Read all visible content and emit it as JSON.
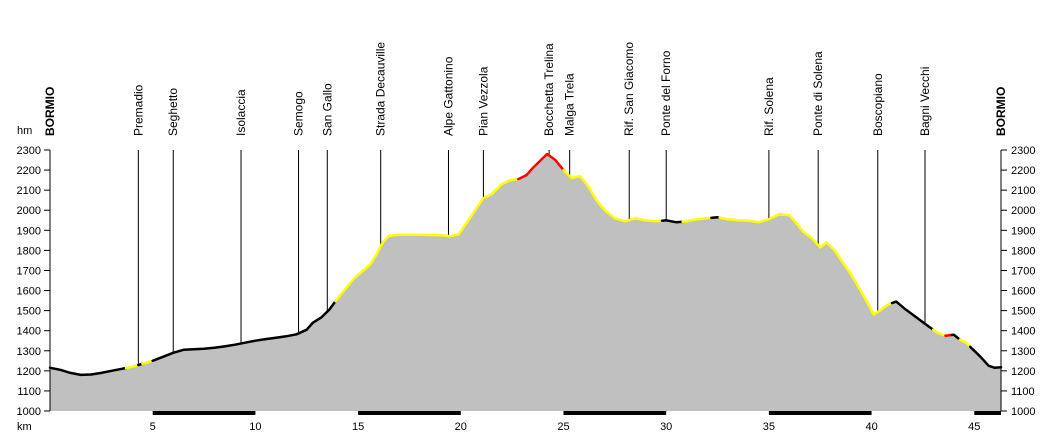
{
  "chart_data": {
    "type": "area",
    "title": "",
    "ylabel": "hm",
    "xlabel": "km",
    "ylim": [
      1000,
      2300
    ],
    "xlim": [
      0,
      46.3
    ],
    "grid": false,
    "colors": {
      "fill": "#c0c0c0",
      "black_segment": "#000000",
      "yellow_segment": "#ffff00",
      "red_segment": "#ff0000"
    },
    "y_ticks": [
      "1000",
      "1100",
      "1200",
      "1300",
      "1400",
      "1500",
      "1600",
      "1700",
      "1800",
      "1900",
      "2000",
      "2100",
      "2200",
      "2300"
    ],
    "x_ticks": [
      {
        "value": 5,
        "label": "5"
      },
      {
        "value": 10,
        "label": "10"
      },
      {
        "value": 15,
        "label": "15"
      },
      {
        "value": 20,
        "label": "20"
      },
      {
        "value": 25,
        "label": "25"
      },
      {
        "value": 30,
        "label": "30"
      },
      {
        "value": 35,
        "label": "35"
      },
      {
        "value": 40,
        "label": "40"
      },
      {
        "value": 45,
        "label": "45"
      }
    ],
    "profile": [
      [
        0.0,
        1215
      ],
      [
        0.5,
        1205
      ],
      [
        1.0,
        1190
      ],
      [
        1.5,
        1180
      ],
      [
        2.0,
        1182
      ],
      [
        2.5,
        1190
      ],
      [
        3.0,
        1200
      ],
      [
        3.5,
        1210
      ],
      [
        4.0,
        1220
      ],
      [
        4.5,
        1235
      ],
      [
        5.0,
        1250
      ],
      [
        5.5,
        1270
      ],
      [
        6.0,
        1290
      ],
      [
        6.5,
        1305
      ],
      [
        7.0,
        1308
      ],
      [
        7.5,
        1310
      ],
      [
        8.0,
        1315
      ],
      [
        8.5,
        1322
      ],
      [
        9.0,
        1330
      ],
      [
        9.5,
        1340
      ],
      [
        10.0,
        1350
      ],
      [
        10.5,
        1358
      ],
      [
        11.0,
        1365
      ],
      [
        11.5,
        1372
      ],
      [
        12.0,
        1382
      ],
      [
        12.5,
        1405
      ],
      [
        12.8,
        1440
      ],
      [
        13.2,
        1465
      ],
      [
        13.6,
        1505
      ],
      [
        14.0,
        1560
      ],
      [
        14.4,
        1610
      ],
      [
        14.8,
        1660
      ],
      [
        15.2,
        1695
      ],
      [
        15.6,
        1730
      ],
      [
        15.9,
        1780
      ],
      [
        16.2,
        1840
      ],
      [
        16.5,
        1872
      ],
      [
        17.0,
        1878
      ],
      [
        18.0,
        1878
      ],
      [
        19.0,
        1875
      ],
      [
        19.5,
        1870
      ],
      [
        19.9,
        1880
      ],
      [
        20.3,
        1940
      ],
      [
        20.7,
        2000
      ],
      [
        21.1,
        2060
      ],
      [
        21.5,
        2080
      ],
      [
        22.0,
        2130
      ],
      [
        22.4,
        2150
      ],
      [
        22.8,
        2155
      ],
      [
        23.2,
        2175
      ],
      [
        23.5,
        2210
      ],
      [
        23.9,
        2250
      ],
      [
        24.2,
        2280
      ],
      [
        24.6,
        2250
      ],
      [
        25.0,
        2200
      ],
      [
        25.4,
        2160
      ],
      [
        25.8,
        2170
      ],
      [
        26.2,
        2120
      ],
      [
        26.6,
        2050
      ],
      [
        27.0,
        2000
      ],
      [
        27.5,
        1960
      ],
      [
        28.0,
        1945
      ],
      [
        28.5,
        1960
      ],
      [
        29.0,
        1950
      ],
      [
        29.5,
        1945
      ],
      [
        30.0,
        1950
      ],
      [
        30.5,
        1940
      ],
      [
        31.0,
        1945
      ],
      [
        31.5,
        1955
      ],
      [
        32.0,
        1960
      ],
      [
        32.5,
        1965
      ],
      [
        33.0,
        1955
      ],
      [
        33.5,
        1950
      ],
      [
        34.0,
        1948
      ],
      [
        34.5,
        1940
      ],
      [
        35.0,
        1955
      ],
      [
        35.5,
        1980
      ],
      [
        36.0,
        1975
      ],
      [
        36.3,
        1940
      ],
      [
        36.7,
        1890
      ],
      [
        37.1,
        1860
      ],
      [
        37.5,
        1815
      ],
      [
        37.8,
        1840
      ],
      [
        38.2,
        1800
      ],
      [
        38.6,
        1740
      ],
      [
        39.0,
        1680
      ],
      [
        39.4,
        1610
      ],
      [
        39.8,
        1540
      ],
      [
        40.1,
        1480
      ],
      [
        40.4,
        1500
      ],
      [
        40.8,
        1530
      ],
      [
        41.2,
        1545
      ],
      [
        41.6,
        1510
      ],
      [
        42.0,
        1480
      ],
      [
        42.4,
        1450
      ],
      [
        42.8,
        1420
      ],
      [
        43.2,
        1390
      ],
      [
        43.6,
        1375
      ],
      [
        44.0,
        1380
      ],
      [
        44.3,
        1355
      ],
      [
        44.6,
        1340
      ],
      [
        45.0,
        1300
      ],
      [
        45.3,
        1270
      ],
      [
        45.7,
        1225
      ],
      [
        46.0,
        1215
      ],
      [
        46.3,
        1218
      ]
    ],
    "segments": [
      {
        "color": "black",
        "from": 0.0,
        "to": 3.7
      },
      {
        "color": "yellow",
        "from": 3.7,
        "to": 4.3
      },
      {
        "color": "black",
        "from": 4.3,
        "to": 4.5
      },
      {
        "color": "yellow",
        "from": 4.5,
        "to": 5.0
      },
      {
        "color": "black",
        "from": 5.0,
        "to": 13.9
      },
      {
        "color": "yellow",
        "from": 13.9,
        "to": 22.8
      },
      {
        "color": "red",
        "from": 22.8,
        "to": 25.0
      },
      {
        "color": "yellow",
        "from": 25.0,
        "to": 29.8
      },
      {
        "color": "black",
        "from": 29.8,
        "to": 30.8
      },
      {
        "color": "yellow",
        "from": 30.8,
        "to": 32.2
      },
      {
        "color": "black",
        "from": 32.2,
        "to": 32.6
      },
      {
        "color": "yellow",
        "from": 32.6,
        "to": 41.0
      },
      {
        "color": "black",
        "from": 41.0,
        "to": 43.0
      },
      {
        "color": "yellow",
        "from": 43.0,
        "to": 43.6
      },
      {
        "color": "red",
        "from": 43.6,
        "to": 43.9
      },
      {
        "color": "black",
        "from": 43.9,
        "to": 44.3
      },
      {
        "color": "yellow",
        "from": 44.3,
        "to": 44.8
      },
      {
        "color": "black",
        "from": 44.8,
        "to": 46.3
      }
    ],
    "km_bands": [
      {
        "from": 5,
        "to": 10
      },
      {
        "from": 15,
        "to": 20
      },
      {
        "from": 25,
        "to": 30
      },
      {
        "from": 35,
        "to": 40
      },
      {
        "from": 45,
        "to": 46.3
      }
    ],
    "waypoints": [
      {
        "km": 0.0,
        "name": "BORMIO",
        "bold": true
      },
      {
        "km": 4.3,
        "name": "Premadio",
        "bold": false
      },
      {
        "km": 6.0,
        "name": "Seghetto",
        "bold": false
      },
      {
        "km": 9.3,
        "name": "Isolaccia",
        "bold": false
      },
      {
        "km": 12.1,
        "name": "Semogo",
        "bold": false
      },
      {
        "km": 13.5,
        "name": "San Gallo",
        "bold": false
      },
      {
        "km": 16.1,
        "name": "Strada Decauville",
        "bold": false
      },
      {
        "km": 19.4,
        "name": "Alpe Gattonino",
        "bold": false
      },
      {
        "km": 21.1,
        "name": "Pian Vezzola",
        "bold": false
      },
      {
        "km": 24.3,
        "name": "Bocchetta Trelina",
        "bold": false
      },
      {
        "km": 25.3,
        "name": "Malga Trela",
        "bold": false
      },
      {
        "km": 28.2,
        "name": "Rif. San Giacomo",
        "bold": false
      },
      {
        "km": 30.0,
        "name": "Ponte del Forno",
        "bold": false
      },
      {
        "km": 35.0,
        "name": "Rif. Solena",
        "bold": false
      },
      {
        "km": 37.4,
        "name": "Ponte di Solena",
        "bold": false
      },
      {
        "km": 40.3,
        "name": "Boscopiano",
        "bold": false
      },
      {
        "km": 42.6,
        "name": "Bagni Vecchi",
        "bold": false
      },
      {
        "km": 46.3,
        "name": "BORMIO",
        "bold": true
      }
    ]
  }
}
